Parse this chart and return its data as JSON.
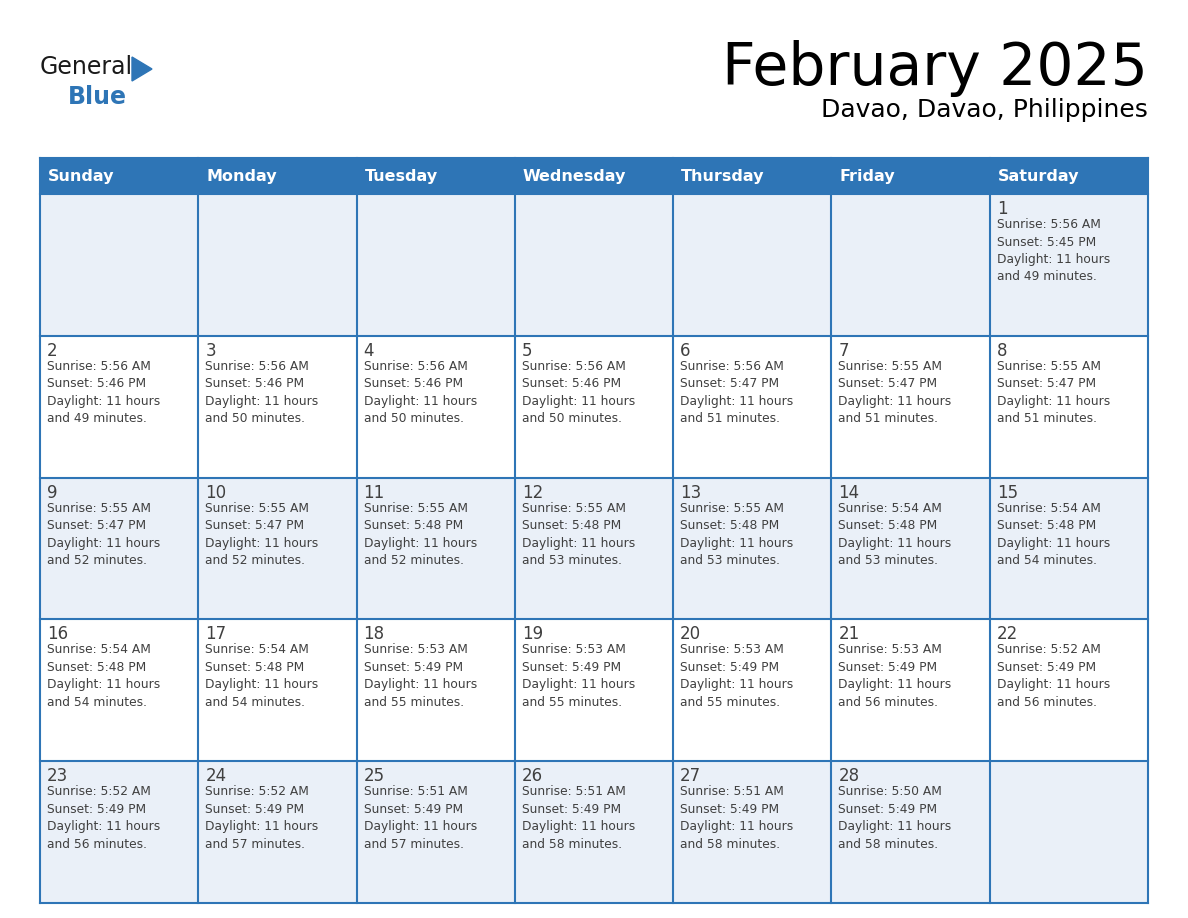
{
  "title": "February 2025",
  "subtitle": "Davao, Davao, Philippines",
  "days_of_week": [
    "Sunday",
    "Monday",
    "Tuesday",
    "Wednesday",
    "Thursday",
    "Friday",
    "Saturday"
  ],
  "header_bg_color": "#2E75B6",
  "header_text_color": "#FFFFFF",
  "row_bg_even": "#FFFFFF",
  "row_bg_odd": "#EAF0F8",
  "cell_border_color": "#2E75B6",
  "day_number_color": "#404040",
  "info_text_color": "#404040",
  "title_color": "#000000",
  "subtitle_color": "#000000",
  "logo_general_color": "#1a1a1a",
  "logo_blue_color": "#2E75B6",
  "weeks": [
    [
      {
        "day": 0,
        "info": ""
      },
      {
        "day": 0,
        "info": ""
      },
      {
        "day": 0,
        "info": ""
      },
      {
        "day": 0,
        "info": ""
      },
      {
        "day": 0,
        "info": ""
      },
      {
        "day": 0,
        "info": ""
      },
      {
        "day": 1,
        "info": "Sunrise: 5:56 AM\nSunset: 5:45 PM\nDaylight: 11 hours\nand 49 minutes."
      }
    ],
    [
      {
        "day": 2,
        "info": "Sunrise: 5:56 AM\nSunset: 5:46 PM\nDaylight: 11 hours\nand 49 minutes."
      },
      {
        "day": 3,
        "info": "Sunrise: 5:56 AM\nSunset: 5:46 PM\nDaylight: 11 hours\nand 50 minutes."
      },
      {
        "day": 4,
        "info": "Sunrise: 5:56 AM\nSunset: 5:46 PM\nDaylight: 11 hours\nand 50 minutes."
      },
      {
        "day": 5,
        "info": "Sunrise: 5:56 AM\nSunset: 5:46 PM\nDaylight: 11 hours\nand 50 minutes."
      },
      {
        "day": 6,
        "info": "Sunrise: 5:56 AM\nSunset: 5:47 PM\nDaylight: 11 hours\nand 51 minutes."
      },
      {
        "day": 7,
        "info": "Sunrise: 5:55 AM\nSunset: 5:47 PM\nDaylight: 11 hours\nand 51 minutes."
      },
      {
        "day": 8,
        "info": "Sunrise: 5:55 AM\nSunset: 5:47 PM\nDaylight: 11 hours\nand 51 minutes."
      }
    ],
    [
      {
        "day": 9,
        "info": "Sunrise: 5:55 AM\nSunset: 5:47 PM\nDaylight: 11 hours\nand 52 minutes."
      },
      {
        "day": 10,
        "info": "Sunrise: 5:55 AM\nSunset: 5:47 PM\nDaylight: 11 hours\nand 52 minutes."
      },
      {
        "day": 11,
        "info": "Sunrise: 5:55 AM\nSunset: 5:48 PM\nDaylight: 11 hours\nand 52 minutes."
      },
      {
        "day": 12,
        "info": "Sunrise: 5:55 AM\nSunset: 5:48 PM\nDaylight: 11 hours\nand 53 minutes."
      },
      {
        "day": 13,
        "info": "Sunrise: 5:55 AM\nSunset: 5:48 PM\nDaylight: 11 hours\nand 53 minutes."
      },
      {
        "day": 14,
        "info": "Sunrise: 5:54 AM\nSunset: 5:48 PM\nDaylight: 11 hours\nand 53 minutes."
      },
      {
        "day": 15,
        "info": "Sunrise: 5:54 AM\nSunset: 5:48 PM\nDaylight: 11 hours\nand 54 minutes."
      }
    ],
    [
      {
        "day": 16,
        "info": "Sunrise: 5:54 AM\nSunset: 5:48 PM\nDaylight: 11 hours\nand 54 minutes."
      },
      {
        "day": 17,
        "info": "Sunrise: 5:54 AM\nSunset: 5:48 PM\nDaylight: 11 hours\nand 54 minutes."
      },
      {
        "day": 18,
        "info": "Sunrise: 5:53 AM\nSunset: 5:49 PM\nDaylight: 11 hours\nand 55 minutes."
      },
      {
        "day": 19,
        "info": "Sunrise: 5:53 AM\nSunset: 5:49 PM\nDaylight: 11 hours\nand 55 minutes."
      },
      {
        "day": 20,
        "info": "Sunrise: 5:53 AM\nSunset: 5:49 PM\nDaylight: 11 hours\nand 55 minutes."
      },
      {
        "day": 21,
        "info": "Sunrise: 5:53 AM\nSunset: 5:49 PM\nDaylight: 11 hours\nand 56 minutes."
      },
      {
        "day": 22,
        "info": "Sunrise: 5:52 AM\nSunset: 5:49 PM\nDaylight: 11 hours\nand 56 minutes."
      }
    ],
    [
      {
        "day": 23,
        "info": "Sunrise: 5:52 AM\nSunset: 5:49 PM\nDaylight: 11 hours\nand 56 minutes."
      },
      {
        "day": 24,
        "info": "Sunrise: 5:52 AM\nSunset: 5:49 PM\nDaylight: 11 hours\nand 57 minutes."
      },
      {
        "day": 25,
        "info": "Sunrise: 5:51 AM\nSunset: 5:49 PM\nDaylight: 11 hours\nand 57 minutes."
      },
      {
        "day": 26,
        "info": "Sunrise: 5:51 AM\nSunset: 5:49 PM\nDaylight: 11 hours\nand 58 minutes."
      },
      {
        "day": 27,
        "info": "Sunrise: 5:51 AM\nSunset: 5:49 PM\nDaylight: 11 hours\nand 58 minutes."
      },
      {
        "day": 28,
        "info": "Sunrise: 5:50 AM\nSunset: 5:49 PM\nDaylight: 11 hours\nand 58 minutes."
      },
      {
        "day": 0,
        "info": ""
      }
    ]
  ]
}
